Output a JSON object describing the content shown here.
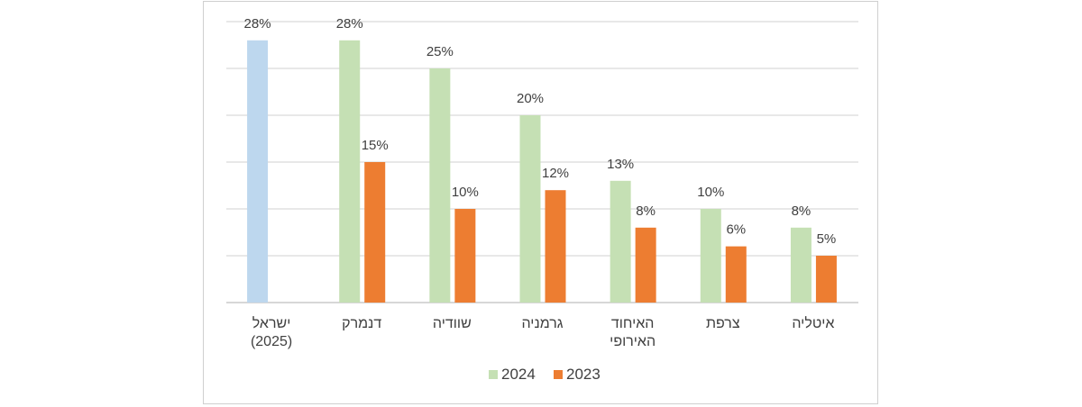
{
  "chart_data": {
    "type": "bar",
    "categories": [
      [
        "ישראל",
        "(2025)"
      ],
      [
        "דנמרק"
      ],
      [
        "שוודיה"
      ],
      [
        "גרמניה"
      ],
      [
        "האיחוד",
        "האירופי"
      ],
      [
        "צרפת"
      ],
      [
        "איטליה"
      ]
    ],
    "series": [
      {
        "name": "2024",
        "color": "#c5e0b4",
        "values": [
          null,
          28,
          25,
          20,
          13,
          10,
          8
        ],
        "labels": [
          "",
          "28%",
          "25%",
          "20%",
          "13%",
          "10%",
          "8%"
        ]
      },
      {
        "name": "2023",
        "color": "#ed7d31",
        "values": [
          null,
          15,
          10,
          12,
          8,
          6,
          5
        ],
        "labels": [
          "",
          "15%",
          "10%",
          "12%",
          "8%",
          "6%",
          "5%"
        ]
      }
    ],
    "highlight": {
      "category_index": 0,
      "value": 28,
      "label": "28%",
      "color": "#bdd7ee"
    },
    "ylim": [
      0,
      30
    ],
    "grid": true,
    "legend": {
      "position": "bottom",
      "entries": [
        "2024",
        "2023"
      ]
    }
  }
}
